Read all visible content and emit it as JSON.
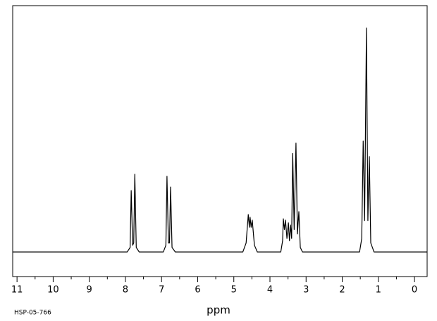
{
  "chart_data": {
    "type": "line",
    "x_label": "ppm",
    "footnote": "HSP-05-766",
    "xlim": [
      11.12,
      -0.35
    ],
    "ylim": [
      -11,
      110
    ],
    "xticks": [
      11,
      10,
      9,
      8,
      7,
      6,
      5,
      4,
      3,
      2,
      1,
      0
    ],
    "xminorticks": [
      10.5,
      9.5,
      8.5,
      7.5,
      6.5,
      5.5,
      4.5,
      3.5,
      2.5,
      1.5,
      0.5
    ],
    "x": [
      11.12,
      7.95,
      7.87,
      7.84,
      7.8,
      7.77,
      7.74,
      7.7,
      7.62,
      6.95,
      6.88,
      6.85,
      6.81,
      6.78,
      6.75,
      6.71,
      6.62,
      4.75,
      4.66,
      4.6,
      4.57,
      4.55,
      4.52,
      4.49,
      4.43,
      4.35,
      3.7,
      3.65,
      3.63,
      3.6,
      3.57,
      3.53,
      3.49,
      3.46,
      3.43,
      3.4,
      3.37,
      3.33,
      3.28,
      3.24,
      3.2,
      3.16,
      3.1,
      1.52,
      1.46,
      1.42,
      1.38,
      1.33,
      1.29,
      1.25,
      1.21,
      1.12,
      -0.35
    ],
    "series": [
      {
        "color": "#000000",
        "values": [
          0,
          0,
          2,
          27.4,
          3,
          4,
          34.7,
          2,
          0,
          0,
          3,
          33.8,
          4,
          4,
          29,
          2,
          0,
          0,
          4,
          16.7,
          11,
          15.5,
          11,
          14.2,
          3,
          0,
          0,
          5,
          14.8,
          10,
          14.2,
          6,
          13,
          5,
          12,
          6,
          44,
          10,
          48.6,
          8,
          18,
          2,
          0,
          0,
          6,
          49.5,
          14,
          100,
          14,
          42.6,
          4,
          0,
          0
        ]
      }
    ]
  }
}
